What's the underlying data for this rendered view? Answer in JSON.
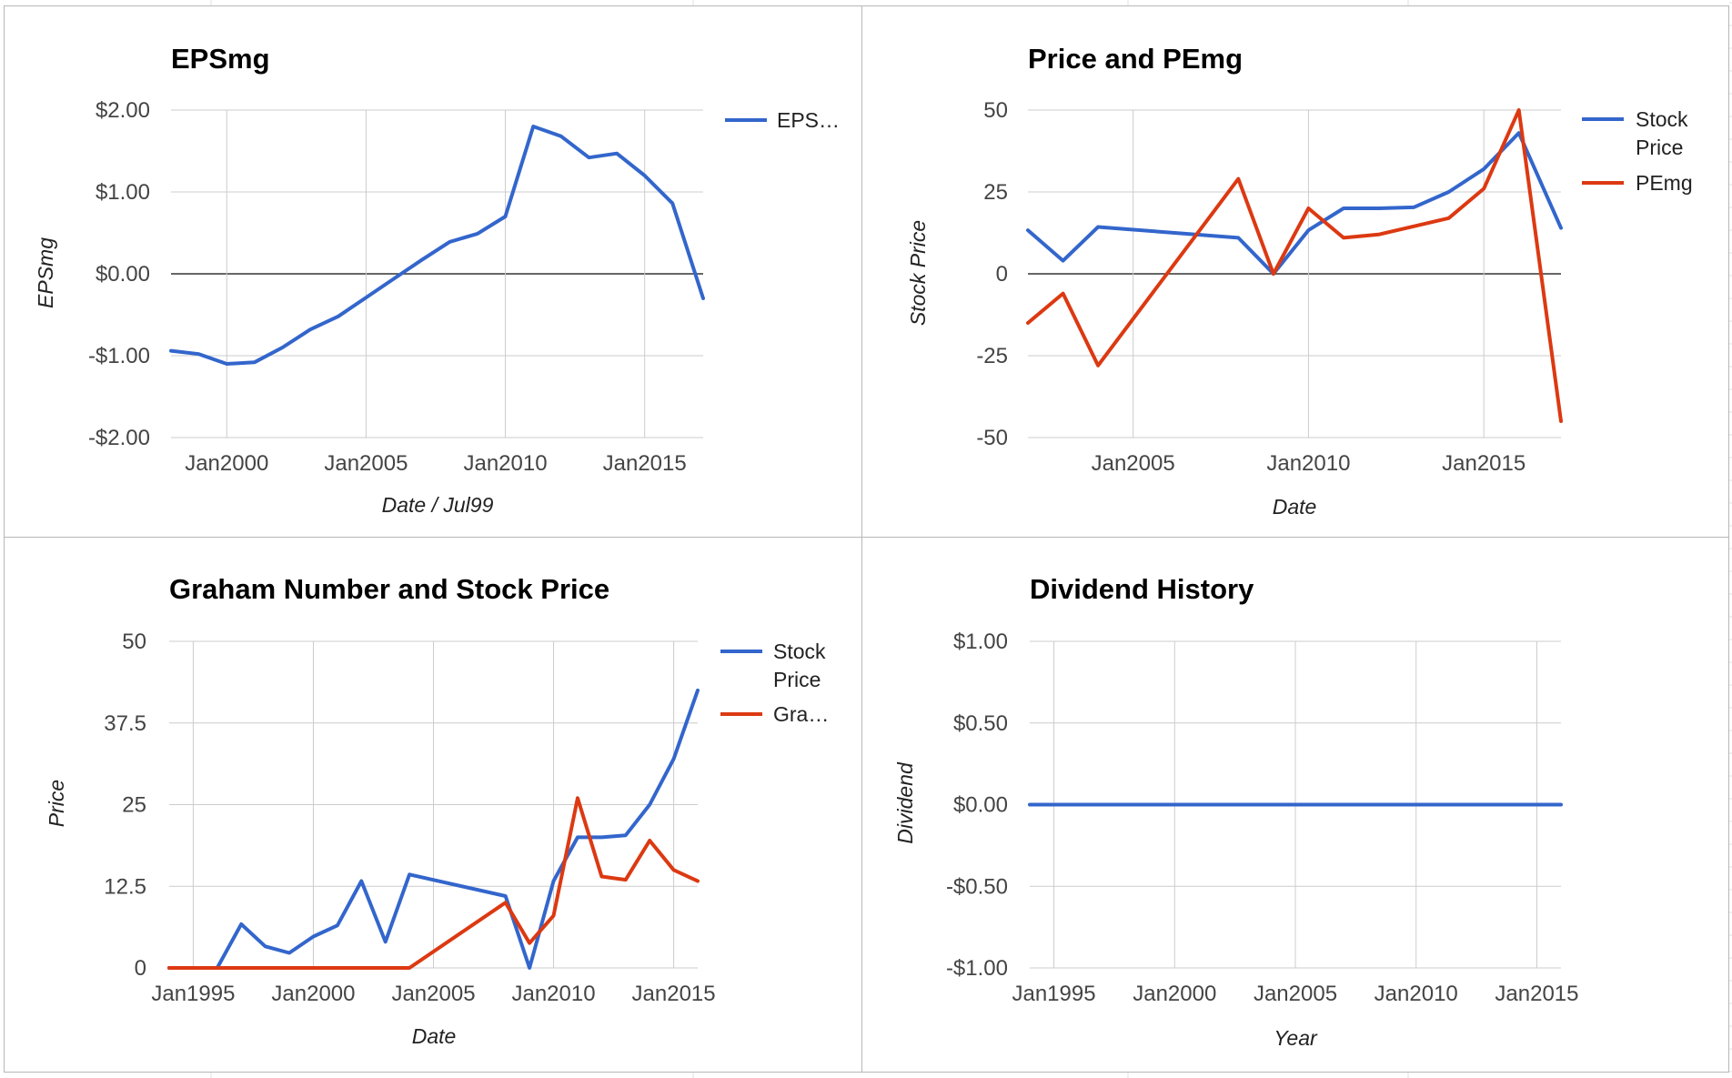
{
  "colors": {
    "series_blue": "#3366cc",
    "series_red": "#dc3912",
    "grid": "#cccccc",
    "zero_line": "#333333",
    "panel_border": "#b7b7b7"
  },
  "chart_data": [
    {
      "id": "epsmg",
      "type": "line",
      "title": "EPSmg",
      "xlabel": "Date / Jul99",
      "ylabel": "EPSmg",
      "x_ticks": [
        "Jan2000",
        "Jan2005",
        "Jan2010",
        "Jan2015"
      ],
      "x_tick_values": [
        2000,
        2005,
        2010,
        2015
      ],
      "y_ticks": [
        "$2.00",
        "$1.00",
        "$0.00",
        "-$1.00",
        "-$2.00"
      ],
      "y_tick_values": [
        2,
        1,
        0,
        -1,
        -2
      ],
      "xlim": [
        1998,
        2017.1
      ],
      "ylim": [
        -2,
        2
      ],
      "grid": true,
      "legend_position": "right",
      "series": [
        {
          "name": "EPS…",
          "color": "#3366cc",
          "x": [
            1998,
            1999,
            2000,
            2001,
            2002,
            2003,
            2004,
            2005,
            2006,
            2007,
            2008,
            2009,
            2010,
            2011,
            2012,
            2013,
            2014,
            2015,
            2016,
            2017.1
          ],
          "y": [
            -0.94,
            -0.98,
            -1.1,
            -1.08,
            -0.9,
            -0.68,
            -0.52,
            -0.29,
            -0.06,
            0.17,
            0.39,
            0.49,
            0.7,
            1.8,
            1.68,
            1.42,
            1.47,
            1.2,
            0.86,
            -0.3
          ]
        }
      ]
    },
    {
      "id": "price-pemg",
      "type": "line",
      "title": "Price and PEmg",
      "xlabel": "Date",
      "ylabel": "Stock Price",
      "x_ticks": [
        "Jan2005",
        "Jan2010",
        "Jan2015"
      ],
      "x_tick_values": [
        2005,
        2010,
        2015
      ],
      "y_ticks": [
        "50",
        "25",
        "0",
        "-25",
        "-50"
      ],
      "y_tick_values": [
        50,
        25,
        0,
        -25,
        -50
      ],
      "xlim": [
        2002,
        2017.2
      ],
      "ylim": [
        -50,
        50
      ],
      "grid": true,
      "legend_position": "right",
      "series": [
        {
          "name": "Stock Price",
          "color": "#3366cc",
          "x": [
            2002,
            2003,
            2004,
            2008,
            2009,
            2010,
            2011,
            2012,
            2013,
            2014,
            2015,
            2016,
            2017.2
          ],
          "y": [
            13.3,
            4,
            14.3,
            11,
            0,
            13.3,
            20,
            20,
            20.3,
            25,
            32,
            43,
            14
          ]
        },
        {
          "name": "PEmg",
          "color": "#dc3912",
          "x": [
            2002,
            2003,
            2004,
            2008,
            2009,
            2010,
            2011,
            2012,
            2013,
            2014,
            2015,
            2016,
            2017.2
          ],
          "y": [
            -15,
            -6,
            -28,
            29,
            0,
            20,
            11,
            12,
            14.5,
            17,
            26,
            50,
            -45
          ]
        }
      ]
    },
    {
      "id": "graham",
      "type": "line",
      "title": "Graham Number and Stock Price",
      "xlabel": "Date",
      "ylabel": "Price",
      "x_ticks": [
        "Jan1995",
        "Jan2000",
        "Jan2005",
        "Jan2010",
        "Jan2015"
      ],
      "x_tick_values": [
        1995,
        2000,
        2005,
        2010,
        2015
      ],
      "y_ticks": [
        "50",
        "37.5",
        "25",
        "12.5",
        "0"
      ],
      "y_tick_values": [
        50,
        37.5,
        25,
        12.5,
        0
      ],
      "xlim": [
        1994,
        2016
      ],
      "ylim": [
        0,
        50
      ],
      "grid": true,
      "legend_position": "right",
      "series": [
        {
          "name": "Stock Price",
          "color": "#3366cc",
          "x": [
            1994,
            1996,
            1997,
            1998,
            1999,
            2000,
            2001,
            2002,
            2003,
            2004,
            2008,
            2009,
            2010,
            2011,
            2012,
            2013,
            2014,
            2015,
            2016
          ],
          "y": [
            0,
            0,
            6.7,
            3.3,
            2.3,
            4.8,
            6.5,
            13.3,
            4,
            14.3,
            11,
            0,
            13.3,
            20,
            20,
            20.3,
            25,
            32,
            42.5
          ]
        },
        {
          "name": "Gra…",
          "color": "#dc3912",
          "x": [
            1994,
            2004,
            2008,
            2009,
            2010,
            2011,
            2012,
            2013,
            2014,
            2015,
            2016
          ],
          "y": [
            0,
            0,
            10,
            3.8,
            8,
            26,
            14,
            13.5,
            19.5,
            15,
            13.3
          ]
        }
      ]
    },
    {
      "id": "dividend",
      "type": "line",
      "title": "Dividend History",
      "xlabel": "Year",
      "ylabel": "Dividend",
      "x_ticks": [
        "Jan1995",
        "Jan2000",
        "Jan2005",
        "Jan2010",
        "Jan2015"
      ],
      "x_tick_values": [
        1995,
        2000,
        2005,
        2010,
        2015
      ],
      "y_ticks": [
        "$1.00",
        "$0.50",
        "$0.00",
        "-$0.50",
        "-$1.00"
      ],
      "y_tick_values": [
        1,
        0.5,
        0,
        -0.5,
        -1
      ],
      "xlim": [
        1994,
        2016
      ],
      "ylim": [
        -1,
        1
      ],
      "grid": true,
      "legend_position": "none",
      "series": [
        {
          "color": "#3366cc",
          "x": [
            1994,
            2016
          ],
          "y": [
            0,
            0
          ]
        }
      ]
    }
  ]
}
